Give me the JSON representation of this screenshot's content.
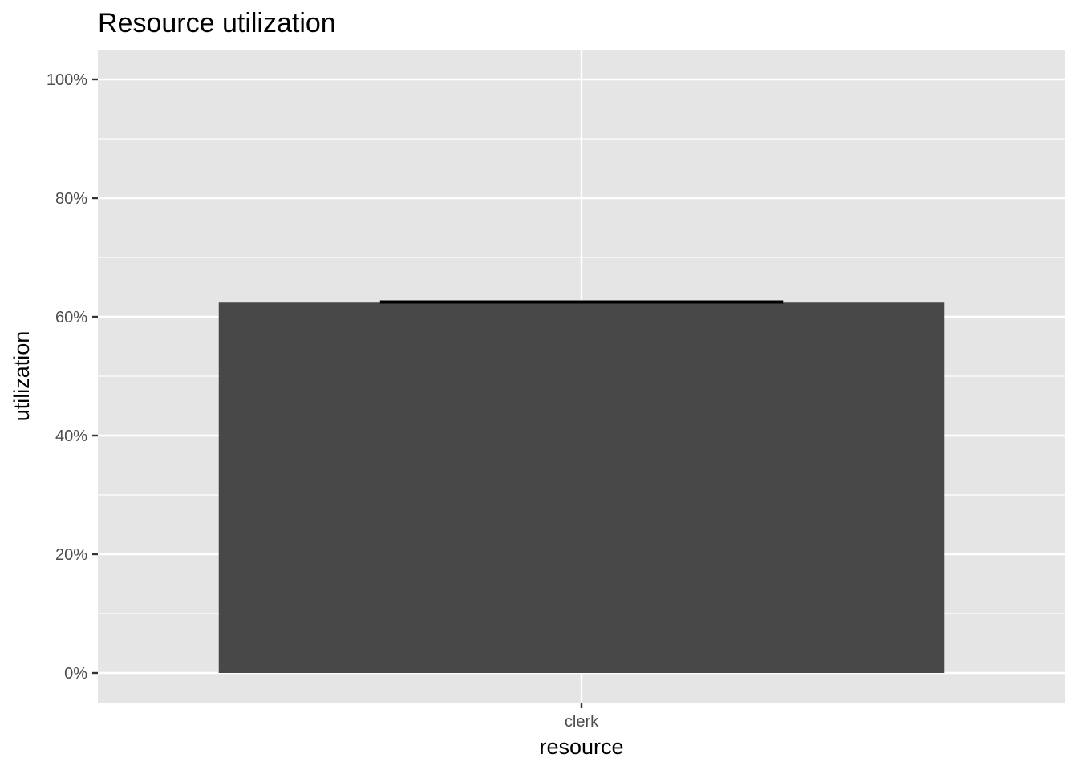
{
  "chart_data": {
    "type": "bar",
    "title": "Resource utilization",
    "xlabel": "resource",
    "ylabel": "utilization",
    "categories": [
      "clerk"
    ],
    "values": [
      0.624
    ],
    "error_bars": [
      {
        "low": 0.624,
        "high": 0.626
      }
    ],
    "ylim": [
      0,
      1.05
    ],
    "yticks": [
      0,
      0.2,
      0.4,
      0.6,
      0.8,
      1.0
    ],
    "ytick_labels": [
      "0%",
      "20%",
      "40%",
      "60%",
      "80%",
      "100%"
    ],
    "grid": true,
    "legend": "none",
    "colors": {
      "panel_background": "#e5e5e5",
      "grid": "#ffffff",
      "bar_fill": "#484848",
      "error_bar": "#000000",
      "tick": "#333333"
    }
  }
}
